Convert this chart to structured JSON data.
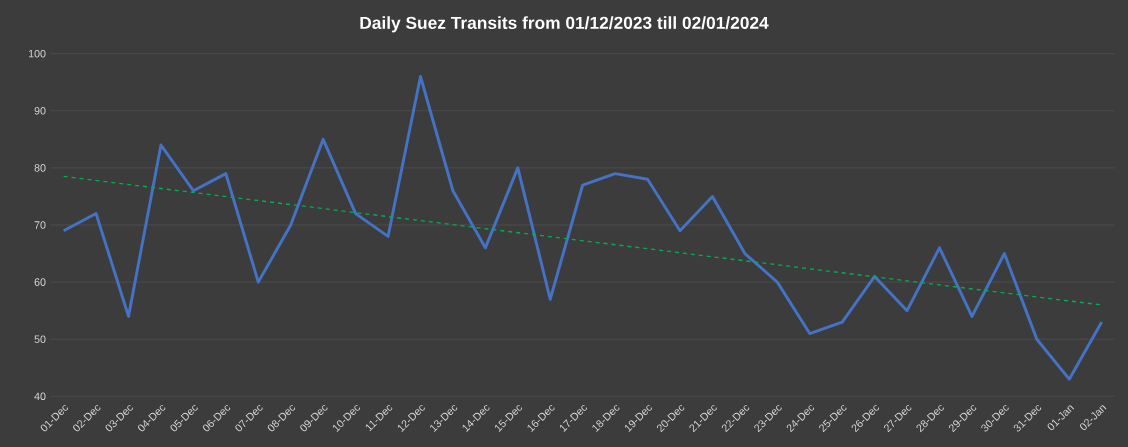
{
  "chart_data": {
    "type": "line",
    "title": "Daily Suez Transits from 01/12/2023 till 02/01/2024",
    "categories": [
      "01-Dec",
      "02-Dec",
      "03-Dec",
      "04-Dec",
      "05-Dec",
      "06-Dec",
      "07-Dec",
      "08-Dec",
      "09-Dec",
      "10-Dec",
      "11-Dec",
      "12-Dec",
      "13-Dec",
      "14-Dec",
      "15-Dec",
      "16-Dec",
      "17-Dec",
      "18-Dec",
      "19-Dec",
      "20-Dec",
      "21-Dec",
      "22-Dec",
      "23-Dec",
      "24-Dec",
      "25-Dec",
      "26-Dec",
      "27-Dec",
      "28-Dec",
      "29-Dec",
      "30-Dec",
      "31-Dec",
      "01-Jan",
      "02-Jan"
    ],
    "series": [
      {
        "color": "#4472c4",
        "line_style": "solid",
        "values": [
          69,
          72,
          54,
          84,
          76,
          79,
          60,
          70,
          85,
          72,
          68,
          96,
          76,
          66,
          80,
          57,
          77,
          79,
          78,
          69,
          75,
          65,
          60,
          51,
          53,
          61,
          55,
          66,
          54,
          65,
          50,
          43,
          53
        ]
      },
      {
        "color": "#00b050",
        "line_style": "dashed",
        "values": [
          78.5,
          null,
          null,
          null,
          null,
          null,
          null,
          null,
          null,
          null,
          null,
          null,
          null,
          null,
          null,
          null,
          null,
          null,
          null,
          null,
          null,
          null,
          null,
          null,
          null,
          null,
          null,
          null,
          null,
          null,
          null,
          null,
          56
        ]
      }
    ],
    "ylim": [
      40,
      100
    ],
    "yticks": [
      40,
      50,
      60,
      70,
      80,
      90,
      100
    ],
    "grid": "y",
    "marker": "none"
  }
}
